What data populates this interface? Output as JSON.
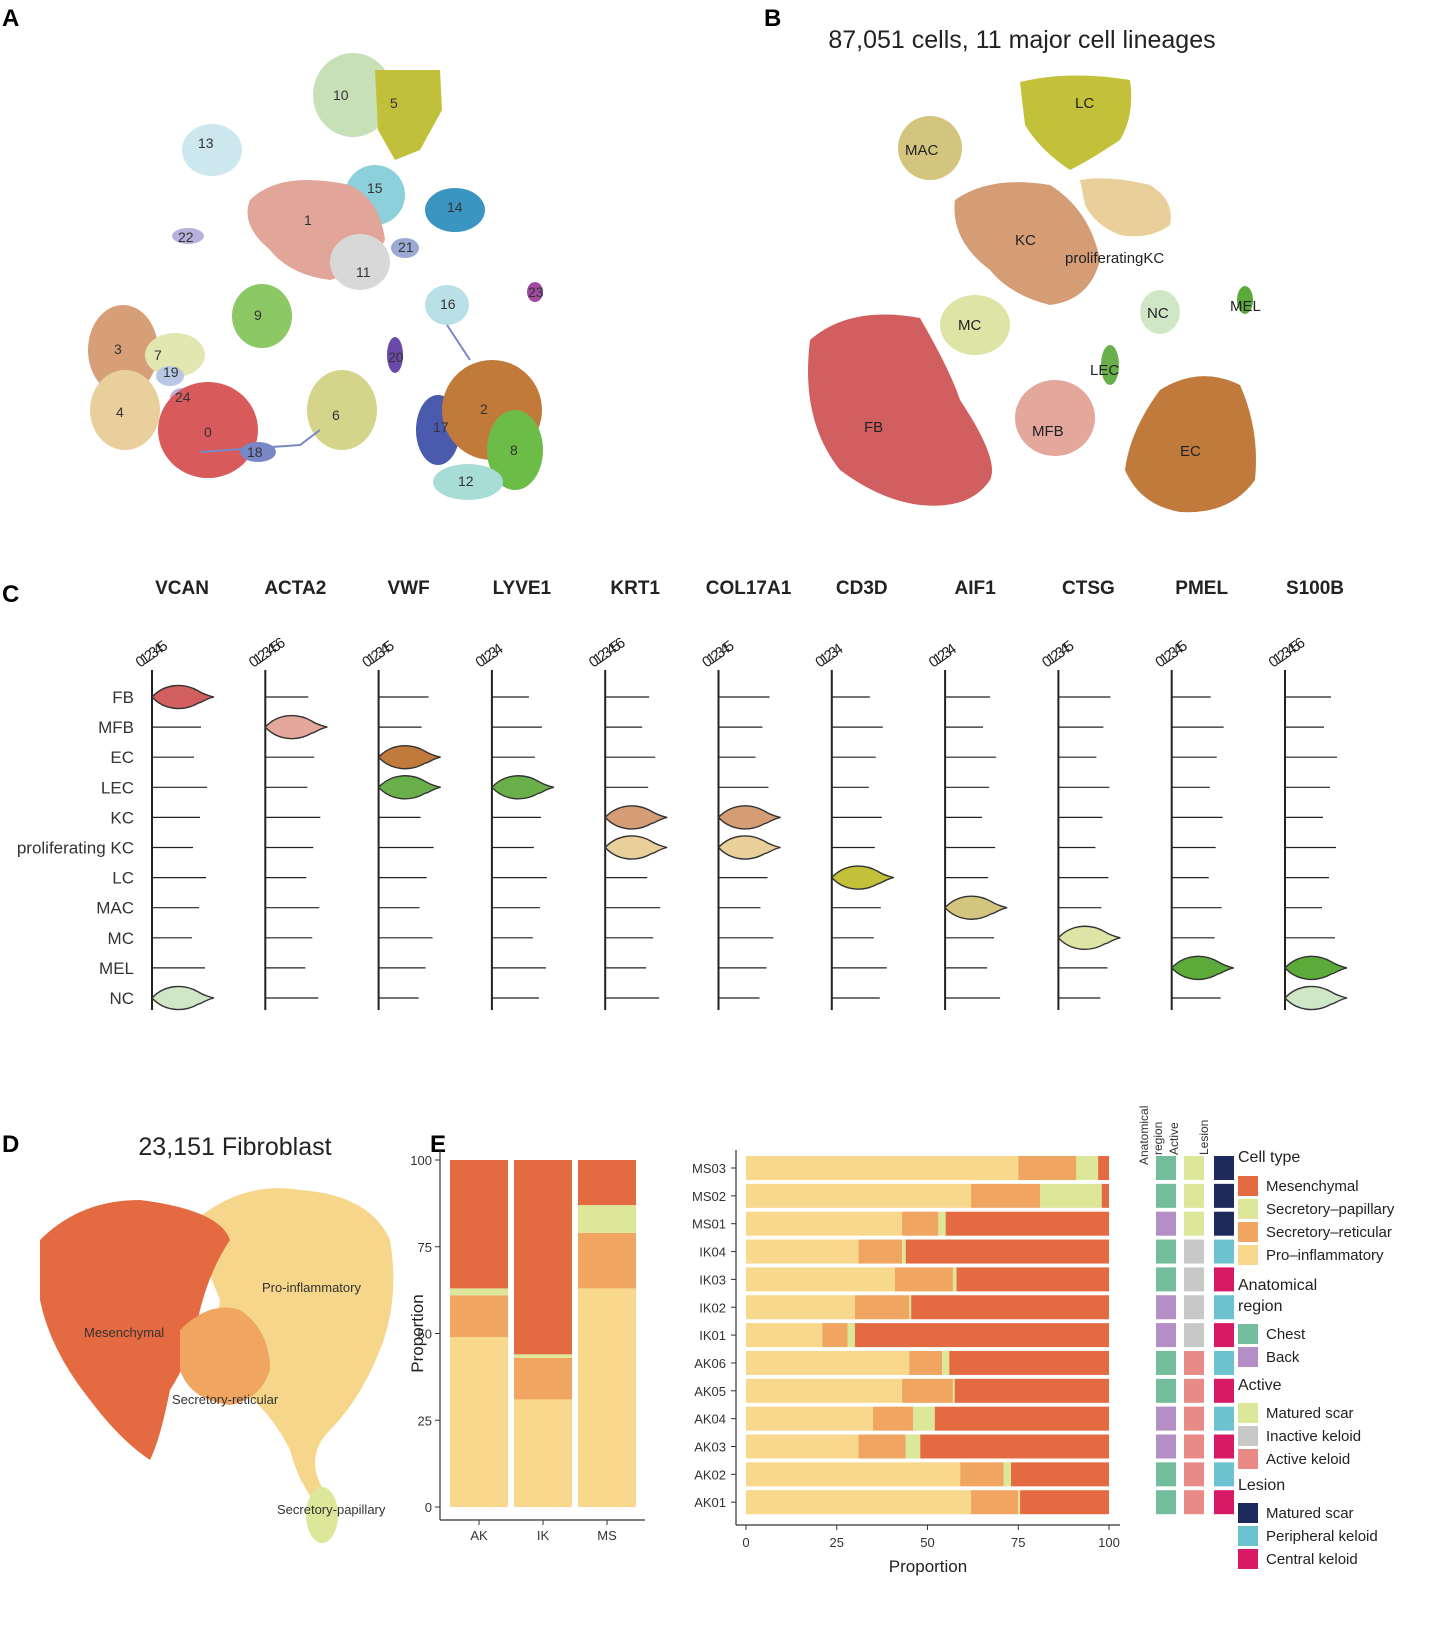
{
  "panels": {
    "a": "A",
    "b": "B",
    "c": "C",
    "d": "D",
    "e": "E"
  },
  "colors": {
    "fb": "#d25f5f",
    "mfb": "#e3a79c",
    "ec": "#c07a3c",
    "lec": "#6ab04a",
    "kc": "#d59d76",
    "pkc": "#e9cf9a",
    "lc": "#c3c03a",
    "mac": "#d4c57e",
    "mc": "#dde4a6",
    "mel": "#5cab3a",
    "nc": "#cfe6c7",
    "mesenchymal": "#e46b41",
    "sec_pap": "#dde79a",
    "sec_ret": "#f0a560",
    "proinf": "#f7d88c",
    "chest": "#73bd9c",
    "back": "#b48ec4",
    "matured": "#dde79a",
    "inactive": "#c8c8c8",
    "active": "#e88a86",
    "les_matured": "#1c2a5c",
    "les_peripheral": "#6cc2cf",
    "les_central": "#d81966"
  },
  "chart_data": [
    {
      "type": "scatter",
      "panel": "A",
      "title": "",
      "description_labels": [
        "0",
        "1",
        "2",
        "3",
        "4",
        "5",
        "6",
        "7",
        "8",
        "9",
        "10",
        "11",
        "12",
        "13",
        "14",
        "15",
        "16",
        "17",
        "18",
        "19",
        "20",
        "21",
        "22",
        "23",
        "24"
      ],
      "clusters": [
        {
          "label": "0",
          "color": "#d85a5a"
        },
        {
          "label": "1",
          "color": "#e2a59a"
        },
        {
          "label": "2",
          "color": "#c27a3a"
        },
        {
          "label": "3",
          "color": "#d79f78"
        },
        {
          "label": "4",
          "color": "#e8cf9c"
        },
        {
          "label": "5",
          "color": "#c0c03a"
        },
        {
          "label": "6",
          "color": "#d4d48a"
        },
        {
          "label": "7",
          "color": "#e2e6b0"
        },
        {
          "label": "8",
          "color": "#6cbc48"
        },
        {
          "label": "9",
          "color": "#8cc864"
        },
        {
          "label": "10",
          "color": "#c8e0b8"
        },
        {
          "label": "11",
          "color": "#d8d8d8"
        },
        {
          "label": "12",
          "color": "#a8dcd6"
        },
        {
          "label": "13",
          "color": "#cce8ee"
        },
        {
          "label": "14",
          "color": "#3a96c0"
        },
        {
          "label": "15",
          "color": "#8cd0dc"
        },
        {
          "label": "16",
          "color": "#b8e0e6"
        },
        {
          "label": "17",
          "color": "#4a5aac"
        },
        {
          "label": "18",
          "color": "#7888c6"
        },
        {
          "label": "19",
          "color": "#b8c8e4"
        },
        {
          "label": "20",
          "color": "#6a4aa8"
        },
        {
          "label": "21",
          "color": "#9aaad4"
        },
        {
          "label": "22",
          "color": "#b8b0dc"
        },
        {
          "label": "23",
          "color": "#a04aa0"
        },
        {
          "label": "24",
          "color": "#c0b0dc"
        }
      ]
    },
    {
      "type": "scatter",
      "panel": "B",
      "title": "87,051 cells, 11 major cell lineages",
      "groups": [
        "LC",
        "MAC",
        "KC",
        "proliferatingKC",
        "MEL",
        "MC",
        "NC",
        "LEC",
        "FB",
        "MFB",
        "EC"
      ]
    },
    {
      "type": "violin",
      "panel": "C",
      "genes": [
        "VCAN",
        "ACTA2",
        "VWF",
        "LYVE1",
        "KRT1",
        "COL17A1",
        "CD3D",
        "AIF1",
        "CTSG",
        "PMEL",
        "S100B"
      ],
      "cell_types": [
        "FB",
        "MFB",
        "EC",
        "LEC",
        "KC",
        "proliferating KC",
        "LC",
        "MAC",
        "MC",
        "MEL",
        "NC"
      ],
      "tick_labels": [
        "012345",
        "0123456",
        "012345",
        "01234",
        "0123456",
        "012345",
        "01234",
        "01234",
        "012345",
        "012345",
        "0123456"
      ],
      "axis_max": [
        5,
        6,
        5,
        4,
        6,
        5,
        4,
        4,
        5,
        5,
        6
      ],
      "highlight": [
        {
          "gene": "VCAN",
          "cell": "FB"
        },
        {
          "gene": "VCAN",
          "cell": "NC"
        },
        {
          "gene": "ACTA2",
          "cell": "MFB"
        },
        {
          "gene": "VWF",
          "cell": "EC"
        },
        {
          "gene": "VWF",
          "cell": "LEC"
        },
        {
          "gene": "LYVE1",
          "cell": "LEC"
        },
        {
          "gene": "KRT1",
          "cell": "KC"
        },
        {
          "gene": "KRT1",
          "cell": "proliferating KC"
        },
        {
          "gene": "COL17A1",
          "cell": "KC"
        },
        {
          "gene": "COL17A1",
          "cell": "proliferating KC"
        },
        {
          "gene": "CD3D",
          "cell": "LC"
        },
        {
          "gene": "AIF1",
          "cell": "MAC"
        },
        {
          "gene": "CTSG",
          "cell": "MC"
        },
        {
          "gene": "PMEL",
          "cell": "MEL"
        },
        {
          "gene": "S100B",
          "cell": "MEL"
        },
        {
          "gene": "S100B",
          "cell": "NC"
        }
      ]
    },
    {
      "type": "scatter",
      "panel": "D",
      "title": "23,151 Fibroblast",
      "groups": [
        "Mesenchymal",
        "Pro-inflammatory",
        "Secretory-reticular",
        "Secretory-papillary"
      ]
    },
    {
      "type": "bar",
      "panel": "E-left",
      "stacked": true,
      "categories": [
        "AK",
        "IK",
        "MS"
      ],
      "series": [
        {
          "name": "Pro-inflammatory",
          "values": [
            49,
            31,
            63
          ]
        },
        {
          "name": "Secretory-reticular",
          "values": [
            12,
            12,
            16
          ]
        },
        {
          "name": "Secretory-papillary",
          "values": [
            2,
            1,
            8
          ]
        },
        {
          "name": "Mesenchymal",
          "values": [
            37,
            56,
            13
          ]
        }
      ],
      "ylabel": "Proportion",
      "yticks": [
        "0",
        "25",
        "50",
        "75",
        "100"
      ],
      "ylim": [
        0,
        100
      ]
    },
    {
      "type": "bar",
      "panel": "E-right",
      "orientation": "horizontal",
      "stacked": true,
      "categories": [
        "MS03",
        "MS02",
        "MS01",
        "IK04",
        "IK03",
        "IK02",
        "IK01",
        "AK06",
        "AK05",
        "AK04",
        "AK03",
        "AK02",
        "AK01"
      ],
      "series": [
        {
          "name": "Pro-inflammatory",
          "values": [
            75,
            62,
            43,
            31,
            41,
            30,
            21,
            45,
            43,
            35,
            31,
            59,
            62
          ]
        },
        {
          "name": "Secretory-reticular",
          "values": [
            16,
            19,
            10,
            12,
            16,
            15,
            7,
            9,
            14,
            11,
            13,
            12,
            13
          ]
        },
        {
          "name": "Secretory-papillary",
          "values": [
            6,
            17,
            2,
            1,
            1,
            0.5,
            2,
            2,
            0.5,
            6,
            4,
            2,
            0.5
          ]
        },
        {
          "name": "Mesenchymal",
          "values": [
            3,
            2,
            45,
            56,
            42,
            54.5,
            70,
            44,
            42.5,
            48,
            52,
            27,
            24.5
          ]
        }
      ],
      "xlabel": "Proportion",
      "xticks": [
        "0",
        "25",
        "50",
        "75",
        "100"
      ],
      "xlim": [
        0,
        100
      ],
      "annotations": {
        "headers": [
          "Anatomical region",
          "Active",
          "Lesion"
        ],
        "anatomical_region": [
          "Chest",
          "Chest",
          "Back",
          "Chest",
          "Chest",
          "Back",
          "Back",
          "Chest",
          "Chest",
          "Back",
          "Back",
          "Chest",
          "Chest"
        ],
        "active": [
          "Matured scar",
          "Matured scar",
          "Matured scar",
          "Inactive keloid",
          "Inactive keloid",
          "Inactive keloid",
          "Inactive keloid",
          "Active keloid",
          "Active keloid",
          "Active keloid",
          "Active keloid",
          "Active keloid",
          "Active keloid"
        ],
        "lesion": [
          "Matured scar",
          "Matured scar",
          "Matured scar",
          "Peripheral keloid",
          "Central keloid",
          "Peripheral keloid",
          "Central keloid",
          "Peripheral keloid",
          "Central keloid",
          "Peripheral keloid",
          "Central keloid",
          "Peripheral keloid",
          "Central keloid"
        ]
      }
    }
  ],
  "legend": {
    "cell_type_title": "Cell type",
    "cell_types": [
      "Mesenchymal",
      "Secretory–papillary",
      "Secretory–reticular",
      "Pro–inflammatory"
    ],
    "region_title_1": "Anatomical",
    "region_title_2": "region",
    "regions": [
      "Chest",
      "Back"
    ],
    "active_title": "Active",
    "actives": [
      "Matured scar",
      "Inactive keloid",
      "Active keloid"
    ],
    "lesion_title": "Lesion",
    "lesions": [
      "Matured scar",
      "Peripheral keloid",
      "Central keloid"
    ]
  },
  "annot_headers": {
    "region_1": "Anatomical",
    "region_2": "region",
    "active": "Active",
    "lesion": "Lesion"
  }
}
